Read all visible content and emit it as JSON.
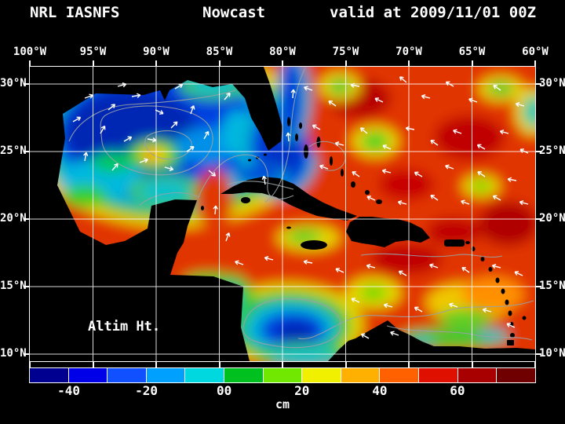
{
  "title": {
    "model": "NRL IASNFS",
    "product": "Nowcast",
    "valid": "valid at 2009/11/01 00Z"
  },
  "axes": {
    "lon_labels": [
      "100°W",
      "95°W",
      "90°W",
      "85°W",
      "80°W",
      "75°W",
      "70°W",
      "65°W",
      "60°W"
    ],
    "lat_labels": [
      "30°N",
      "25°N",
      "20°N",
      "15°N",
      "10°N"
    ]
  },
  "map": {
    "annotation": "Altim Ht."
  },
  "colorbar": {
    "segment_colors": [
      "#000090",
      "#0000e8",
      "#1050ff",
      "#00a0ff",
      "#00d8e0",
      "#00c020",
      "#70e800",
      "#f0f000",
      "#ffb000",
      "#ff6000",
      "#e01000",
      "#a80000",
      "#700000"
    ],
    "tick_labels": [
      "-40",
      "-20",
      "00",
      "20",
      "40",
      "60"
    ],
    "units": "cm"
  },
  "chart_data": {
    "type": "heatmap",
    "title": "NRL IASNFS Nowcast valid at 2009/11/01 00Z",
    "variable": "Altimeter Height (Altim Ht.)",
    "units": "cm",
    "lon_ticks": [
      "100°W",
      "95°W",
      "90°W",
      "85°W",
      "80°W",
      "75°W",
      "70°W",
      "65°W",
      "60°W"
    ],
    "lat_ticks": [
      "30°N",
      "25°N",
      "20°N",
      "15°N",
      "10°N"
    ],
    "colorbar_ticks": [
      -40,
      -20,
      0,
      20,
      40,
      60
    ],
    "colorbar_range_cm": [
      -50,
      80
    ],
    "features": [
      "Low altimeter heights (blue, about -40 to -20 cm) fill the Gulf of Mexico",
      "Warm ring eddy with yellow/orange core (+10 to +30 cm) in west-central Gulf near 93W 25N",
      "Blue low-height band through the Straits of Florida and along the Florida east coast",
      "High heights (red, +30 to +60 cm) across the Caribbean Sea and western Atlantic",
      "Cold low pool (cyan/blue, about -30 cm) in the southwest Caribbean near 80W 12N",
      "Green/cyan coastal band along the Colombia-Venezuela coast and Panama",
      "White vectors show surface currents; gray lines are height contours"
    ]
  }
}
